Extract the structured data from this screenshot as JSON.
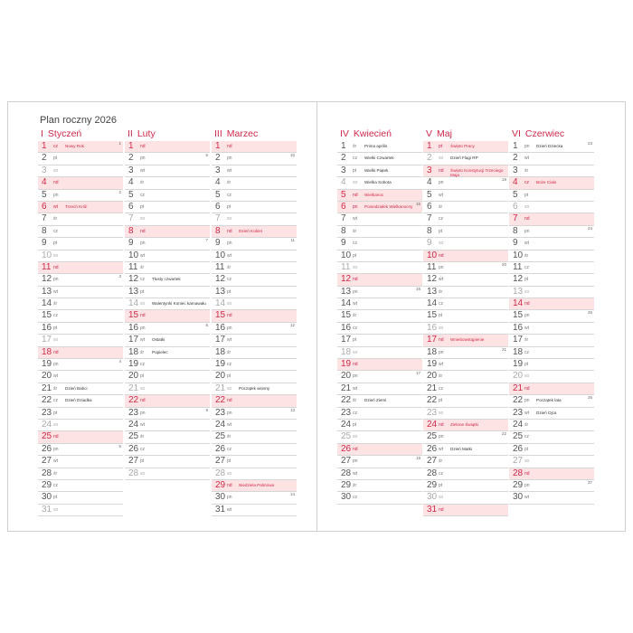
{
  "title": "Plan roczny 2026",
  "colors": {
    "accent": "#d0284a",
    "highlight": "#fde3e3"
  },
  "months": [
    {
      "roman": "I",
      "name": "Styczeń",
      "weekdays": [
        "cz",
        "pt",
        "so",
        "nd",
        "pn",
        "wt",
        "śr",
        "cz",
        "pt",
        "so",
        "nd",
        "pn",
        "wt",
        "śr",
        "cz",
        "pt",
        "so",
        "nd",
        "pn",
        "wt",
        "śr",
        "cz",
        "pt",
        "so",
        "nd",
        "pn",
        "wt",
        "śr",
        "cz",
        "pt",
        "so"
      ],
      "notes": {
        "1": {
          "text": "Nowy Rok",
          "red": true
        },
        "6": {
          "text": "Trzech Króli",
          "red": true
        },
        "21": {
          "text": "Dzień Babci"
        },
        "22": {
          "text": "Dzień Dziadka"
        }
      },
      "weeks": {
        "1": 1,
        "5": 2,
        "12": 3,
        "19": 4,
        "26": 5
      }
    },
    {
      "roman": "II",
      "name": "Luty",
      "weekdays": [
        "nd",
        "pn",
        "wt",
        "śr",
        "cz",
        "pt",
        "so",
        "nd",
        "pn",
        "wt",
        "śr",
        "cz",
        "pt",
        "so",
        "nd",
        "pn",
        "wt",
        "śr",
        "cz",
        "pt",
        "so",
        "nd",
        "pn",
        "wt",
        "śr",
        "cz",
        "pt",
        "so"
      ],
      "notes": {
        "12": {
          "text": "Tłusty czwartek"
        },
        "14": {
          "text": "Walentynki Koniec karnawału"
        },
        "17": {
          "text": "Ostatki"
        },
        "18": {
          "text": "Popielec"
        }
      },
      "weeks": {
        "2": 6,
        "9": 7,
        "16": 8,
        "23": 9
      }
    },
    {
      "roman": "III",
      "name": "Marzec",
      "weekdays": [
        "nd",
        "pn",
        "wt",
        "śr",
        "cz",
        "pt",
        "so",
        "nd",
        "pn",
        "wt",
        "śr",
        "cz",
        "pt",
        "so",
        "nd",
        "pn",
        "wt",
        "śr",
        "cz",
        "pt",
        "so",
        "nd",
        "pn",
        "wt",
        "śr",
        "cz",
        "pt",
        "so",
        "nd",
        "pn",
        "wt"
      ],
      "notes": {
        "8": {
          "text": "Dzień Kobiet"
        },
        "21": {
          "text": "Początek wiosny"
        },
        "29": {
          "text": "Niedziela Palmowa"
        }
      },
      "weeks": {
        "2": 10,
        "9": 11,
        "16": 12,
        "23": 13,
        "30": 14
      }
    },
    {
      "roman": "IV",
      "name": "Kwiecień",
      "weekdays": [
        "śr",
        "cz",
        "pt",
        "so",
        "nd",
        "pn",
        "wt",
        "śr",
        "cz",
        "pt",
        "so",
        "nd",
        "pn",
        "wt",
        "śr",
        "cz",
        "pt",
        "so",
        "nd",
        "pn",
        "wt",
        "śr",
        "cz",
        "pt",
        "so",
        "nd",
        "pn",
        "wt",
        "śr",
        "cz"
      ],
      "notes": {
        "1": {
          "text": "Prima aprilis"
        },
        "2": {
          "text": "Wielki Czwartek"
        },
        "3": {
          "text": "Wielki Piątek"
        },
        "4": {
          "text": "Wielka Sobota"
        },
        "5": {
          "text": "Wielkanoc",
          "red": true
        },
        "6": {
          "text": "Poniedziałek Wielkanocny",
          "red": true
        },
        "22": {
          "text": "Dzień Ziemi"
        }
      },
      "weeks": {
        "6": 15,
        "13": 16,
        "20": 17,
        "27": 18
      }
    },
    {
      "roman": "V",
      "name": "Maj",
      "weekdays": [
        "pt",
        "so",
        "nd",
        "pn",
        "wt",
        "śr",
        "cz",
        "pt",
        "so",
        "nd",
        "pn",
        "wt",
        "śr",
        "cz",
        "pt",
        "so",
        "nd",
        "pn",
        "wt",
        "śr",
        "cz",
        "pt",
        "so",
        "nd",
        "pn",
        "wt",
        "śr",
        "cz",
        "pt",
        "so",
        "nd"
      ],
      "notes": {
        "1": {
          "text": "Święto Pracy",
          "red": true
        },
        "2": {
          "text": "Dzień Flagi RP"
        },
        "3": {
          "text": "Święto Konstytucji Trzeciego Maja",
          "red": true
        },
        "17": {
          "text": "Wniebowstąpienie",
          "red": true
        },
        "24": {
          "text": "Zielone Świątki",
          "red": true
        },
        "26": {
          "text": "Dzień Matki"
        }
      },
      "weeks": {
        "4": 19,
        "11": 20,
        "18": 21,
        "25": 22
      }
    },
    {
      "roman": "VI",
      "name": "Czerwiec",
      "weekdays": [
        "pn",
        "wt",
        "śr",
        "cz",
        "pt",
        "so",
        "nd",
        "pn",
        "wt",
        "śr",
        "cz",
        "pt",
        "so",
        "nd",
        "pn",
        "wt",
        "śr",
        "cz",
        "pt",
        "so",
        "nd",
        "pn",
        "wt",
        "śr",
        "cz",
        "pt",
        "so",
        "nd",
        "pn",
        "wt"
      ],
      "notes": {
        "1": {
          "text": "Dzień Dziecka"
        },
        "4": {
          "text": "Boże Ciało",
          "red": true
        },
        "22": {
          "text": "Początek lata"
        },
        "23": {
          "text": "Dzień Ojca"
        }
      },
      "weeks": {
        "1": 23,
        "8": 24,
        "15": 25,
        "22": 26,
        "29": 27
      }
    }
  ]
}
